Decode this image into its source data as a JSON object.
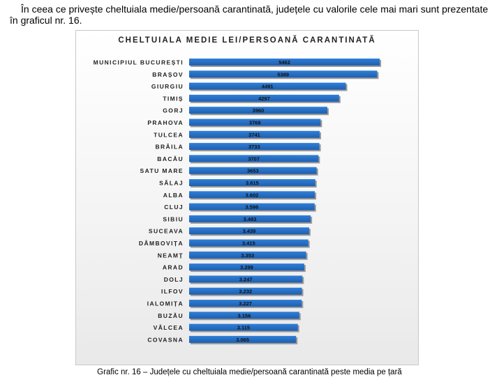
{
  "intro_text": "În ceea ce privește cheltuiala medie/persoană carantinată, județele cu valorile cele mai mari sunt prezentate în graficul nr. 16.",
  "caption": "Grafic nr. 16 – Județele cu cheltuiala medie/persoană carantinată peste media pe țară",
  "colors": {
    "bar": "#2f7fd8",
    "bar_dark": "#1f5fae",
    "shadow": "#9a9a9a"
  },
  "chart_data": {
    "type": "bar",
    "orientation": "horizontal",
    "title": "CHELTUIALA MEDIE LEI/PERSOANĂ CARANTINATĂ",
    "categories": [
      "MUNICIPIUL BUCUREȘTI",
      "BRAȘOV",
      "GIURGIU",
      "TIMIȘ",
      "GORJ",
      "PRAHOVA",
      "TULCEA",
      "BRĂILA",
      "BACĂU",
      "SATU MARE",
      "SĂLAJ",
      "ALBA",
      "CLUJ",
      "SIBIU",
      "SUCEAVA",
      "DÂMBOVIȚA",
      "NEAMȚ",
      "ARAD",
      "DOLJ",
      "ILFOV",
      "IALOMIȚA",
      "BUZĂU",
      "VÂLCEA",
      "COVASNA"
    ],
    "values": [
      5462,
      5389,
      4491,
      4297,
      3960,
      3768,
      3741,
      3733,
      3707,
      3653,
      3615,
      3602,
      3596,
      3483,
      3439,
      3415,
      3353,
      3299,
      3247,
      3232,
      3227,
      3156,
      3115,
      3065
    ],
    "value_labels": [
      "5462",
      "5389",
      "4491",
      "4297",
      "3960",
      "3768",
      "3741",
      "3733",
      "3707",
      "3653",
      "3.615",
      "3.602",
      "3.596",
      "3.483",
      "3.439",
      "3.415",
      "3.353",
      "3.299",
      "3.247",
      "3.232",
      "3.227",
      "3.156",
      "3.115",
      "3.065"
    ],
    "xlim": [
      0,
      5600
    ],
    "grid": false,
    "legend": "none"
  }
}
